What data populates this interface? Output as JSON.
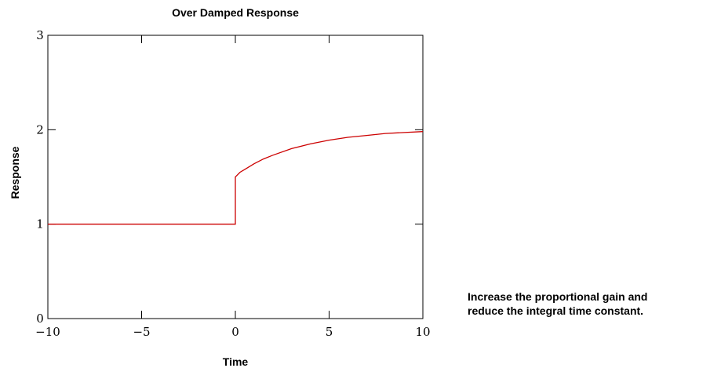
{
  "chart_data": {
    "type": "line",
    "title": "Over Damped Response",
    "xlabel": "Time",
    "ylabel": "Response",
    "xlim": [
      -10,
      10
    ],
    "ylim": [
      0,
      3
    ],
    "x_ticks": [
      -10,
      -5,
      0,
      5,
      10
    ],
    "x_tick_labels": [
      "−10",
      "−5",
      "0",
      "5",
      "10"
    ],
    "y_ticks": [
      0,
      1,
      2,
      3
    ],
    "y_tick_labels": [
      "0",
      "1",
      "2",
      "3"
    ],
    "grid": false,
    "line_color": "#cc0000",
    "series": [
      {
        "x": [
          -10,
          0,
          0,
          0.25,
          0.5,
          1,
          1.5,
          2,
          3,
          4,
          5,
          6,
          7,
          8,
          9,
          10
        ],
        "y": [
          1,
          1,
          1.5,
          1.55,
          1.58,
          1.64,
          1.69,
          1.73,
          1.8,
          1.85,
          1.89,
          1.92,
          1.94,
          1.96,
          1.97,
          1.98
        ]
      }
    ]
  },
  "annotation": {
    "line1": "Increase the proportional gain and",
    "line2": "reduce the integral time constant."
  }
}
